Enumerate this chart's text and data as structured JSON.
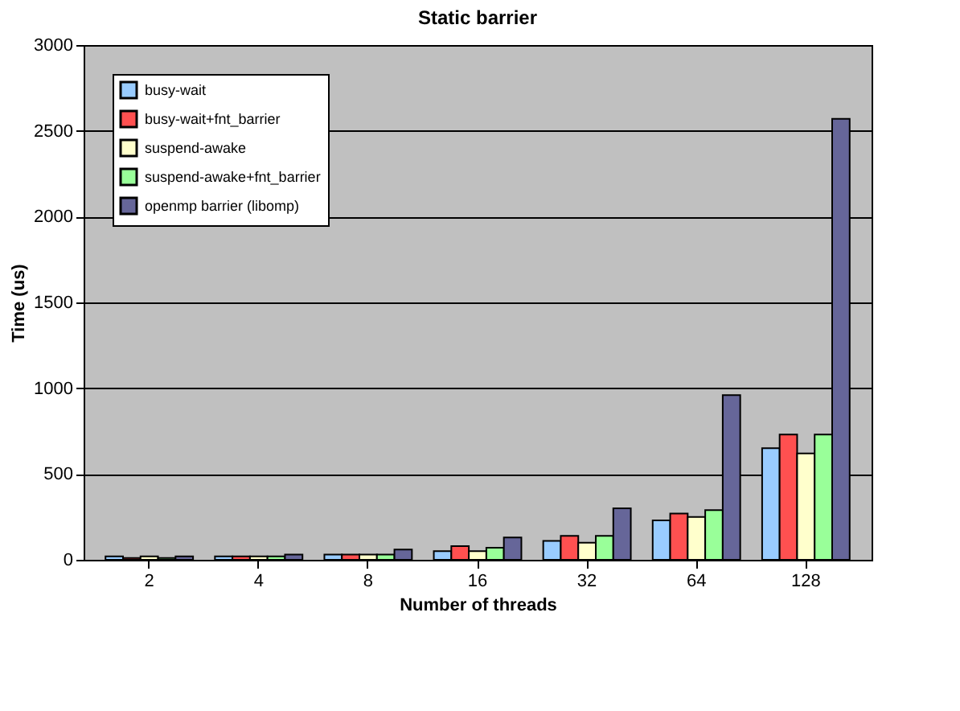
{
  "chart_data": {
    "type": "bar",
    "title": "Static barrier",
    "xlabel": "Number of threads",
    "ylabel": "Time (us)",
    "categories": [
      "2",
      "4",
      "8",
      "16",
      "32",
      "64",
      "128"
    ],
    "series": [
      {
        "name": "busy-wait",
        "color": "#99ccff",
        "values": [
          20,
          20,
          30,
          50,
          110,
          230,
          650
        ]
      },
      {
        "name": "busy-wait+fnt_barrier",
        "color": "#ff5050",
        "values": [
          10,
          20,
          30,
          80,
          140,
          270,
          730
        ]
      },
      {
        "name": "suspend-awake",
        "color": "#ffffcc",
        "values": [
          20,
          20,
          30,
          50,
          100,
          250,
          620
        ]
      },
      {
        "name": "suspend-awake+fnt_barrier",
        "color": "#99ff99",
        "values": [
          10,
          20,
          30,
          70,
          140,
          290,
          730
        ]
      },
      {
        "name": "openmp barrier (libomp)",
        "color": "#666699",
        "values": [
          20,
          30,
          60,
          130,
          300,
          960,
          2570
        ]
      }
    ],
    "ylim": [
      0,
      3000
    ],
    "yticks": [
      0,
      500,
      1000,
      1500,
      2000,
      2500,
      3000
    ],
    "grid": "y",
    "legend": "top left"
  }
}
